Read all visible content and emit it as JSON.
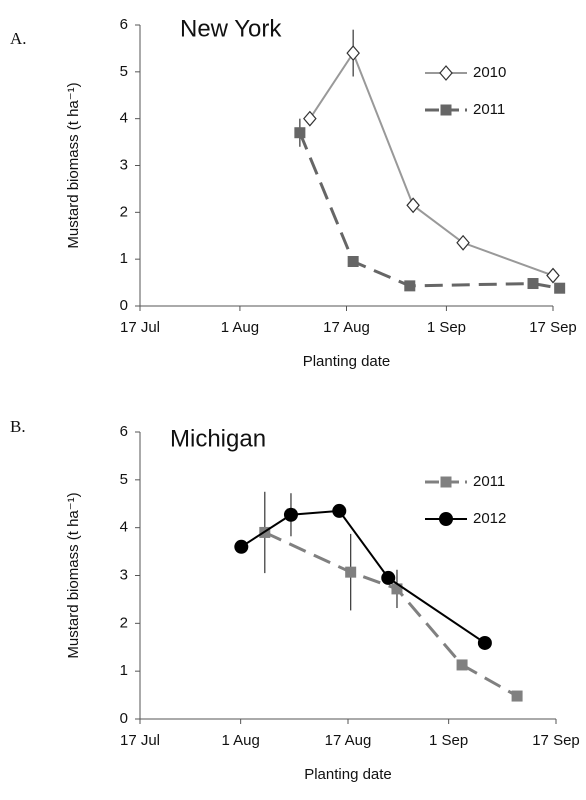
{
  "chart_data": [
    {
      "type": "line",
      "panel_label": "A.",
      "title": "New York",
      "x_label": "Planting date",
      "y_label": "Mustard biomass (t ha⁻¹)",
      "xlim": [
        198,
        260
      ],
      "xticks": [
        {
          "value": 198,
          "label": "17 Jul"
        },
        {
          "value": 213,
          "label": "1 Aug"
        },
        {
          "value": 229,
          "label": "17 Aug"
        },
        {
          "value": 244,
          "label": "1 Sep"
        },
        {
          "value": 260,
          "label": "17 Sep"
        }
      ],
      "ylim": [
        0,
        6
      ],
      "yticks": [
        0,
        1,
        2,
        3,
        4,
        5,
        6
      ],
      "legend": "upper right",
      "series": [
        {
          "name": "2010",
          "color": "#999999",
          "marker": "diamond",
          "dash": false,
          "x": [
            223.5,
            230,
            239,
            246.5,
            260
          ],
          "values": [
            4.0,
            5.4,
            2.15,
            1.35,
            0.65
          ],
          "errors": [
            null,
            0.5,
            null,
            null,
            null
          ]
        },
        {
          "name": "2011",
          "color": "#666666",
          "marker": "square",
          "dash": true,
          "x": [
            222,
            230,
            238.5,
            257,
            261
          ],
          "values": [
            3.7,
            0.95,
            0.43,
            0.48,
            0.38
          ],
          "errors": [
            0.3,
            null,
            null,
            null,
            null
          ]
        }
      ]
    },
    {
      "type": "line",
      "panel_label": "B.",
      "title": "Michigan",
      "x_label": "Planting date",
      "y_label": "Mustard biomass (t ha⁻¹)",
      "xlim": [
        198,
        260
      ],
      "xticks": [
        {
          "value": 198,
          "label": "17 Jul"
        },
        {
          "value": 213,
          "label": "1 Aug"
        },
        {
          "value": 229,
          "label": "17 Aug"
        },
        {
          "value": 244,
          "label": "1 Sep"
        },
        {
          "value": 260,
          "label": "17 Sep"
        }
      ],
      "ylim": [
        0,
        6
      ],
      "yticks": [
        0,
        1,
        2,
        3,
        4,
        5,
        6
      ],
      "legend": "upper right",
      "series": [
        {
          "name": "2011",
          "color": "#808080",
          "marker": "square",
          "dash": true,
          "x": [
            216.6,
            229.4,
            236.3,
            246,
            254.2
          ],
          "values": [
            3.9,
            3.07,
            2.72,
            1.13,
            0.48
          ],
          "errors": [
            0.85,
            0.8,
            0.4,
            null,
            null
          ]
        },
        {
          "name": "2012",
          "color": "#000000",
          "marker": "circle",
          "dash": false,
          "x": [
            213.1,
            220.5,
            227.7,
            235,
            249.4
          ],
          "values": [
            3.6,
            4.27,
            4.35,
            2.95,
            1.59
          ],
          "errors": [
            null,
            0.45,
            null,
            null,
            null
          ]
        }
      ]
    }
  ]
}
